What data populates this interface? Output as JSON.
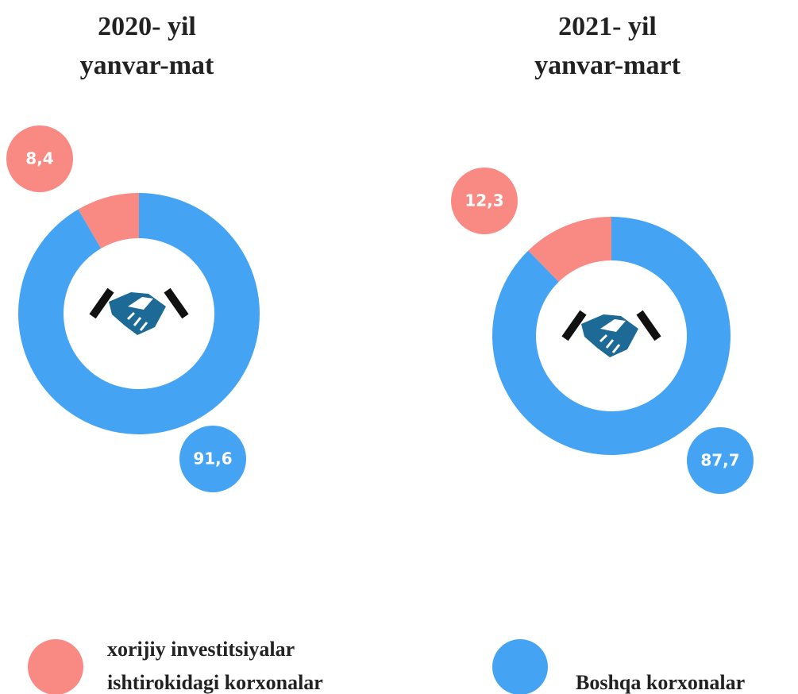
{
  "chart_data": [
    {
      "type": "donut",
      "title": "2020- yil",
      "subtitle": "yanvar-mat",
      "values": [
        8.4,
        91.6
      ],
      "value_labels": [
        "8,4",
        "91,6"
      ]
    },
    {
      "type": "donut",
      "title": "2021- yil",
      "subtitle": "yanvar-mart",
      "values": [
        12.3,
        87.7
      ],
      "value_labels": [
        "12,3",
        "87,7"
      ]
    }
  ],
  "legend": {
    "position": "bottom",
    "colors": [
      "#f98a83",
      "#45a3f4"
    ],
    "labels": [
      [
        "xorijiy investitsiyalar",
        "ishtirokidagi korxonalar"
      ],
      [
        "Boshqa korxonalar"
      ]
    ]
  }
}
